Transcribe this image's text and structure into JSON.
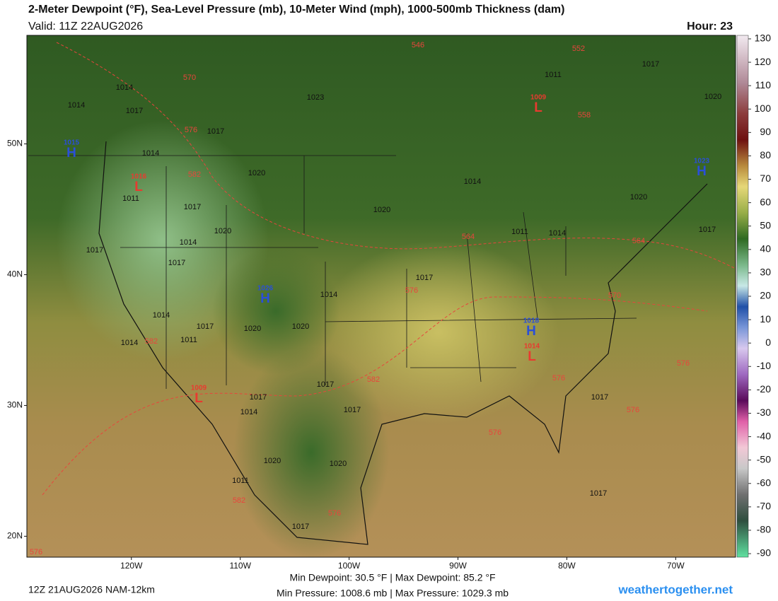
{
  "header": {
    "title": "2-Meter Dewpoint (°F), Sea-Level Pressure (mb), 10-Meter Wind (mph), 1000-500mb Thickness (dam)",
    "valid": "Valid: 11Z 22AUG2026",
    "hour": "Hour: 23"
  },
  "map": {
    "xlim": [
      -129.6,
      -64.5
    ],
    "ylim": [
      18.4,
      58.3
    ],
    "lat_ticks": [
      {
        "value": 50,
        "label": "50N"
      },
      {
        "value": 40,
        "label": "40N"
      },
      {
        "value": 30,
        "label": "30N"
      },
      {
        "value": 20,
        "label": "20N"
      }
    ],
    "lon_ticks": [
      {
        "value": -120,
        "label": "120W"
      },
      {
        "value": -110,
        "label": "110W"
      },
      {
        "value": -100,
        "label": "100W"
      },
      {
        "value": -90,
        "label": "90W"
      },
      {
        "value": -80,
        "label": "80W"
      },
      {
        "value": -70,
        "label": "70W"
      }
    ],
    "isobar_labels": [
      1017,
      1011,
      1020,
      1014,
      1014,
      1017,
      1023,
      1017,
      1014,
      1020,
      1014,
      1011,
      1017,
      1020,
      1020,
      1020,
      1014,
      1011,
      1014,
      1017,
      1017,
      1017,
      1017,
      1014,
      1014,
      1017,
      1020,
      1020,
      1011,
      1014,
      1017,
      1017,
      1017,
      1014,
      1017,
      1020,
      1020,
      1011,
      1017,
      1017
    ],
    "thickness_labels": [
      546,
      552,
      570,
      558,
      576,
      582,
      564,
      564,
      576,
      570,
      582,
      582,
      576,
      576,
      576,
      576,
      582,
      576,
      576
    ],
    "centers": [
      {
        "letter": "H",
        "pressure": 1015
      },
      {
        "letter": "H",
        "pressure": 1023
      },
      {
        "letter": "H",
        "pressure": 1026
      },
      {
        "letter": "H",
        "pressure": 1018
      },
      {
        "letter": "L",
        "pressure": 1016
      },
      {
        "letter": "L",
        "pressure": 1009
      },
      {
        "letter": "L",
        "pressure": 1014
      },
      {
        "letter": "L",
        "pressure": 1009
      }
    ]
  },
  "colorbar": {
    "lim": [
      -91.5,
      131.5
    ],
    "ticks": [
      130,
      120,
      110,
      100,
      90,
      80,
      70,
      60,
      50,
      40,
      30,
      20,
      10,
      0,
      -10,
      -20,
      -30,
      -40,
      -50,
      -60,
      -70,
      -80,
      -90
    ]
  },
  "footer": {
    "run": "12Z 21AUG2026 NAM-12km",
    "dewpoint": "Min Dewpoint:  30.5 °F | Max Dewpoint:  85.2 °F",
    "pressure": "Min Pressure: 1008.6 mb | Max Pressure: 1029.3 mb",
    "site": "weathertogether.net"
  }
}
